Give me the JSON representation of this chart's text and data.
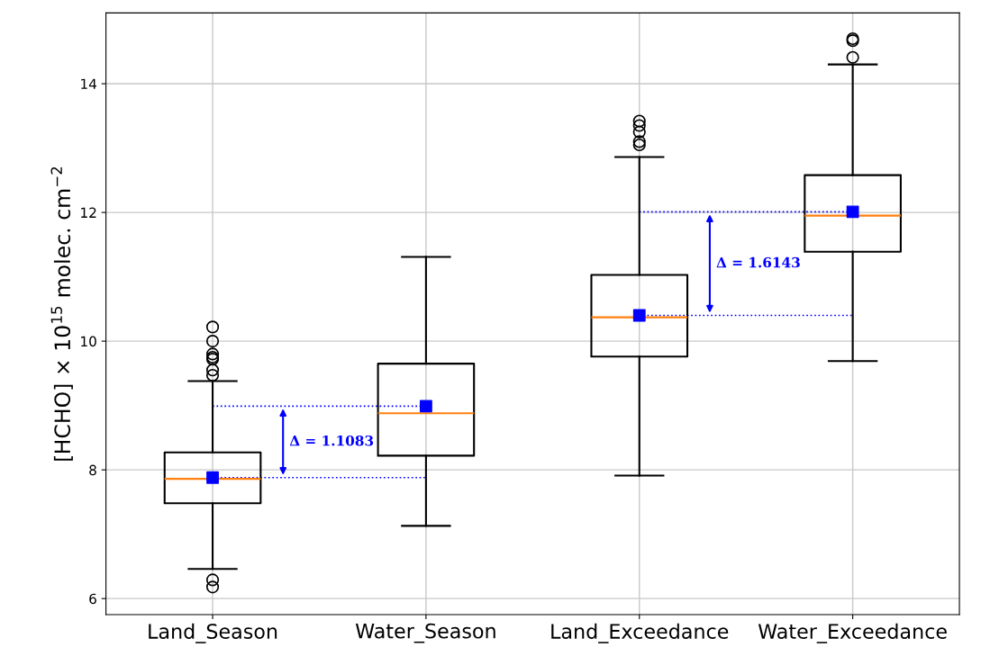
{
  "chart_data": {
    "type": "box",
    "categories": [
      "Land_Season",
      "Water_Season",
      "Land_Exceedance",
      "Water_Exceedance"
    ],
    "ylabel": "[HCHO] × 10$^{15}$ molec. cm$^{−2}$",
    "series": [
      {
        "color": "#000000",
        "boxes": [
          {
            "low": 6.46,
            "q1": 7.48,
            "median": 7.86,
            "q3": 8.27,
            "high": 9.38,
            "outliers": [
              6.18,
              6.29,
              9.47,
              9.55,
              9.72,
              9.75,
              9.8,
              10.0,
              10.22
            ]
          },
          {
            "low": 7.13,
            "q1": 8.22,
            "median": 8.88,
            "q3": 9.65,
            "high": 11.31
          },
          {
            "low": 7.91,
            "q1": 9.76,
            "median": 10.37,
            "q3": 11.03,
            "high": 12.86,
            "outliers": [
              13.05,
              13.1,
              13.25,
              13.35,
              13.42
            ]
          },
          {
            "low": 9.69,
            "q1": 11.39,
            "median": 11.95,
            "q3": 12.58,
            "high": 14.3,
            "outliers": [
              14.41,
              14.67,
              14.7
            ]
          }
        ]
      },
      {
        "type": "scatter",
        "color": "#0000ff",
        "marker": "square",
        "x": [
          "Land_Season",
          "Water_Season",
          "Land_Exceedance",
          "Water_Exceedance"
        ],
        "values": [
          7.88,
          8.99,
          10.4,
          12.01
        ]
      },
      {
        "type": "line",
        "color": "#0000ff",
        "line_style": "dotted",
        "x": [
          "Land_Season",
          "Water_Season"
        ],
        "values": [
          7.88,
          7.88
        ]
      },
      {
        "type": "line",
        "color": "#0000ff",
        "line_style": "dotted",
        "x": [
          "Land_Season",
          "Water_Season"
        ],
        "values": [
          8.99,
          8.99
        ]
      },
      {
        "type": "line",
        "color": "#0000ff",
        "line_style": "dotted",
        "x": [
          "Land_Exceedance",
          "Water_Exceedance"
        ],
        "values": [
          10.4,
          10.4
        ]
      },
      {
        "type": "line",
        "color": "#0000ff",
        "line_style": "dotted",
        "x": [
          "Land_Exceedance",
          "Water_Exceedance"
        ],
        "values": [
          12.01,
          12.01
        ]
      }
    ],
    "annotations": [
      "Δ = 1.1083",
      "Δ = 1.6143"
    ],
    "ylim": [
      5.75,
      15.1
    ],
    "yticks": [
      6,
      8,
      10,
      12,
      14
    ],
    "grid": true
  }
}
